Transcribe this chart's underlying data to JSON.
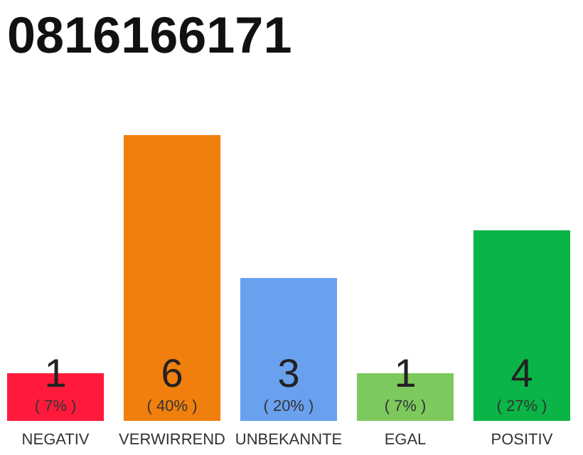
{
  "chart_data": {
    "type": "bar",
    "title": "0816166171",
    "categories": [
      "NEGATIV",
      "VERWIRREND",
      "UNBEKANNTE",
      "EGAL",
      "POSITIV"
    ],
    "values": [
      1,
      6,
      3,
      1,
      4
    ],
    "colors": [
      "#ff1a3c",
      "#f17f0d",
      "#6aa1ef",
      "#7dc95e",
      "#0ab446"
    ],
    "data_labels": true,
    "annotations": [
      "( 7% )",
      "( 40% )",
      "( 20% )",
      "( 7% )",
      "( 27% )"
    ],
    "tick_labels": "x",
    "grid": false
  }
}
